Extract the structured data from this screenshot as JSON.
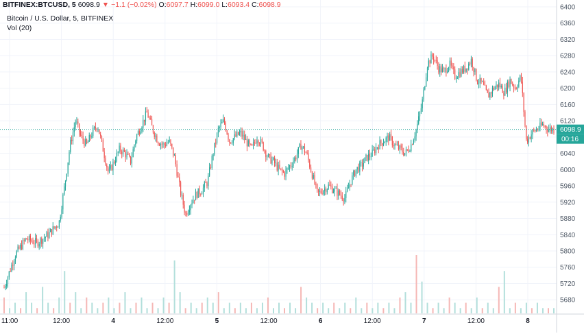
{
  "header": {
    "symbol": "BITFINEX:BTCUSD, 5",
    "last": "6098.9",
    "arrow": "▼",
    "change": "−1.1 (−0.02%)",
    "o_label": "O:",
    "o": "6097.7",
    "h_label": "H:",
    "h": "6099.0",
    "l_label": "L:",
    "l": "6093.4",
    "c_label": "C:",
    "c": "6098.9"
  },
  "legend": {
    "series": "Bitcoin / U.S. Dollar, 5, BITFINEX",
    "volume": "Vol (20)"
  },
  "colors": {
    "up": "#26a69a",
    "down": "#ef5350",
    "up_volume": "#b2dfdb",
    "down_volume": "#f5b7b5",
    "price_line": "#26a69a",
    "grid": "#f0f3fa",
    "axis_text": "#4f5966"
  },
  "chart_data": {
    "type": "candlestick",
    "title": "Bitcoin / U.S. Dollar, 5, BITFINEX",
    "y_axis": {
      "ticks": [
        5680,
        5720,
        5760,
        5800,
        5840,
        5880,
        5920,
        5960,
        6000,
        6040,
        6080,
        6120,
        6160,
        6200,
        6240,
        6280,
        6320,
        6360,
        6400
      ],
      "range": [
        5650,
        6400
      ],
      "position": "right"
    },
    "x_axis": {
      "ticks": [
        "11:00",
        "12:00",
        "4",
        "12:00",
        "5",
        "12:00",
        "6",
        "12:00",
        "7",
        "12:00",
        "8"
      ],
      "bold_ticks": [
        "4",
        "5",
        "6",
        "7",
        "8"
      ]
    },
    "last_price": {
      "value": 6098.9,
      "label": "6098.9",
      "countdown": "00:16"
    },
    "price_path": [
      [
        0,
        5710
      ],
      [
        2,
        5790
      ],
      [
        4,
        5830
      ],
      [
        6,
        5820
      ],
      [
        8,
        5840
      ],
      [
        10,
        5870
      ],
      [
        11,
        5960
      ],
      [
        12,
        6060
      ],
      [
        13,
        6120
      ],
      [
        14,
        6080
      ],
      [
        15,
        6060
      ],
      [
        16,
        6090
      ],
      [
        17,
        6110
      ],
      [
        18,
        6050
      ],
      [
        19,
        5990
      ],
      [
        20,
        6020
      ],
      [
        21,
        6050
      ],
      [
        22,
        6040
      ],
      [
        23,
        6020
      ],
      [
        24,
        6080
      ],
      [
        25,
        6110
      ],
      [
        26,
        6140
      ],
      [
        27,
        6100
      ],
      [
        28,
        6070
      ],
      [
        29,
        6060
      ],
      [
        30,
        6070
      ],
      [
        31,
        6030
      ],
      [
        32,
        5950
      ],
      [
        33,
        5890
      ],
      [
        34,
        5920
      ],
      [
        35,
        5940
      ],
      [
        36,
        5950
      ],
      [
        37,
        5970
      ],
      [
        38,
        6040
      ],
      [
        39,
        6100
      ],
      [
        40,
        6120
      ],
      [
        41,
        6070
      ],
      [
        42,
        6080
      ],
      [
        43,
        6090
      ],
      [
        44,
        6070
      ],
      [
        45,
        6050
      ],
      [
        46,
        6080
      ],
      [
        47,
        6060
      ],
      [
        48,
        6030
      ],
      [
        49,
        6020
      ],
      [
        50,
        6000
      ],
      [
        51,
        5990
      ],
      [
        52,
        6010
      ],
      [
        53,
        6030
      ],
      [
        54,
        6060
      ],
      [
        55,
        6040
      ],
      [
        56,
        5990
      ],
      [
        57,
        5940
      ],
      [
        58,
        5950
      ],
      [
        59,
        5960
      ],
      [
        60,
        5950
      ],
      [
        61,
        5940
      ],
      [
        62,
        5930
      ],
      [
        63,
        5970
      ],
      [
        64,
        6000
      ],
      [
        65,
        6010
      ],
      [
        66,
        6030
      ],
      [
        67,
        6040
      ],
      [
        68,
        6060
      ],
      [
        69,
        6070
      ],
      [
        70,
        6080
      ],
      [
        71,
        6060
      ],
      [
        72,
        6050
      ],
      [
        73,
        6040
      ],
      [
        74,
        6060
      ],
      [
        75,
        6100
      ],
      [
        76,
        6160
      ],
      [
        77,
        6260
      ],
      [
        78,
        6280
      ],
      [
        79,
        6250
      ],
      [
        80,
        6240
      ],
      [
        81,
        6260
      ],
      [
        82,
        6230
      ],
      [
        83,
        6240
      ],
      [
        84,
        6250
      ],
      [
        85,
        6270
      ],
      [
        86,
        6220
      ],
      [
        87,
        6210
      ],
      [
        88,
        6180
      ],
      [
        89,
        6200
      ],
      [
        90,
        6210
      ],
      [
        91,
        6190
      ],
      [
        92,
        6220
      ],
      [
        93,
        6200
      ],
      [
        94,
        6230
      ],
      [
        95,
        6070
      ],
      [
        96,
        6090
      ],
      [
        97,
        6100
      ],
      [
        98,
        6110
      ],
      [
        99,
        6100
      ],
      [
        100,
        6098.9
      ]
    ],
    "volume": [
      3,
      1,
      2,
      1,
      4,
      2,
      1,
      5,
      2,
      1,
      3,
      8,
      2,
      4,
      1,
      3,
      2,
      1,
      2,
      3,
      1,
      2,
      4,
      1,
      2,
      3,
      1,
      2,
      1,
      3,
      2,
      10,
      4,
      1,
      2,
      1,
      2,
      3,
      2,
      4,
      1,
      2,
      1,
      2,
      1,
      2,
      1,
      2,
      3,
      1,
      2,
      1,
      2,
      1,
      5,
      3,
      2,
      1,
      2,
      1,
      2,
      1,
      2,
      1,
      3,
      1,
      2,
      1,
      2,
      1,
      2,
      1,
      3,
      4,
      2,
      11,
      6,
      2,
      1,
      2,
      1,
      3,
      2,
      1,
      2,
      1,
      3,
      1,
      2,
      1,
      5,
      8,
      1,
      2,
      1,
      2,
      1,
      2,
      1,
      1,
      1
    ]
  }
}
